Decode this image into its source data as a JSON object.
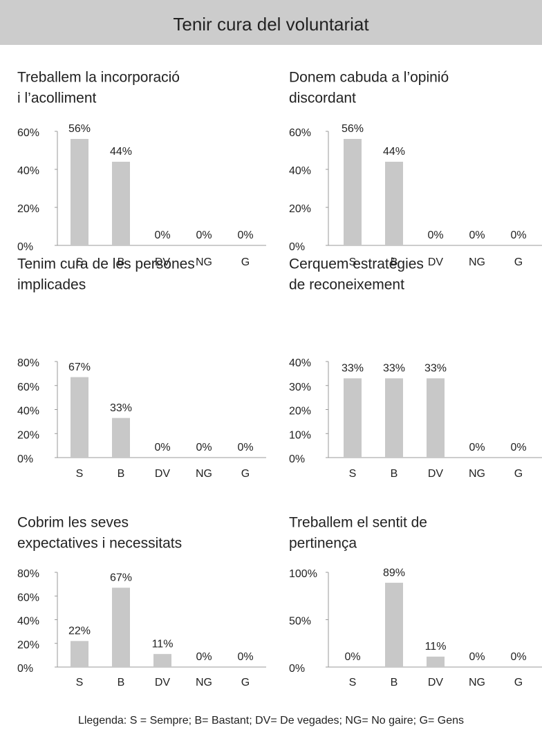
{
  "header": {
    "title": "Tenir cura del voluntariat"
  },
  "legend": "Llegenda: S = Sempre;  B= Bastant; DV= De vegades; NG= No gaire; G= Gens",
  "chart_data": [
    {
      "type": "bar",
      "title": [
        "Treballem la incorporació",
        "i l’acolliment"
      ],
      "categories": [
        "S",
        "B",
        "DV",
        "NG",
        "G"
      ],
      "values": [
        56,
        44,
        0,
        0,
        0
      ],
      "value_labels": [
        "56%",
        "44%",
        "0%",
        "0%",
        "0%"
      ],
      "color": "#c8c8c8",
      "ylim": [
        0,
        60
      ],
      "yticks": [
        {
          "value": 0,
          "label": "0%"
        },
        {
          "value": 20,
          "label": "20%"
        },
        {
          "value": 40,
          "label": "40%"
        },
        {
          "value": 60,
          "label": "60%"
        }
      ]
    },
    {
      "type": "bar",
      "title": [
        "Donem cabuda a l’opinió",
        "discordant"
      ],
      "categories": [
        "S",
        "B",
        "DV",
        "NG",
        "G"
      ],
      "values": [
        56,
        44,
        0,
        0,
        0
      ],
      "value_labels": [
        "56%",
        "44%",
        "0%",
        "0%",
        "0%"
      ],
      "color": "#c8c8c8",
      "ylim": [
        0,
        60
      ],
      "yticks": [
        {
          "value": 0,
          "label": "0%"
        },
        {
          "value": 20,
          "label": "20%"
        },
        {
          "value": 40,
          "label": "40%"
        },
        {
          "value": 60,
          "label": "60%"
        }
      ]
    },
    {
      "type": "bar",
      "title": [
        "Tenim cura de les persones",
        "implicades"
      ],
      "categories": [
        "S",
        "B",
        "DV",
        "NG",
        "G"
      ],
      "values": [
        67,
        33,
        0,
        0,
        0
      ],
      "value_labels": [
        "67%",
        "33%",
        "0%",
        "0%",
        "0%"
      ],
      "color": "#c8c8c8",
      "ylim": [
        0,
        80
      ],
      "yticks": [
        {
          "value": 0,
          "label": "0%"
        },
        {
          "value": 20,
          "label": "20%"
        },
        {
          "value": 40,
          "label": "40%"
        },
        {
          "value": 60,
          "label": "60%"
        },
        {
          "value": 80,
          "label": "80%"
        }
      ]
    },
    {
      "type": "bar",
      "title": [
        "Cerquem estratègies",
        "de reconeixement"
      ],
      "categories": [
        "S",
        "B",
        "DV",
        "NG",
        "G"
      ],
      "values": [
        33,
        33,
        33,
        0,
        0
      ],
      "value_labels": [
        "33%",
        "33%",
        "33%",
        "0%",
        "0%"
      ],
      "color": "#c8c8c8",
      "ylim": [
        0,
        40
      ],
      "yticks": [
        {
          "value": 0,
          "label": "0%"
        },
        {
          "value": 10,
          "label": "10%"
        },
        {
          "value": 20,
          "label": "20%"
        },
        {
          "value": 30,
          "label": "30%"
        },
        {
          "value": 40,
          "label": "40%"
        }
      ]
    },
    {
      "type": "bar",
      "title": [
        "Cobrim les seves",
        "expectatives i necessitats"
      ],
      "categories": [
        "S",
        "B",
        "DV",
        "NG",
        "G"
      ],
      "values": [
        22,
        67,
        11,
        0,
        0
      ],
      "value_labels": [
        "22%",
        "67%",
        "11%",
        "0%",
        "0%"
      ],
      "color": "#c8c8c8",
      "ylim": [
        0,
        80
      ],
      "yticks": [
        {
          "value": 0,
          "label": "0%"
        },
        {
          "value": 20,
          "label": "20%"
        },
        {
          "value": 40,
          "label": "40%"
        },
        {
          "value": 60,
          "label": "60%"
        },
        {
          "value": 80,
          "label": "80%"
        }
      ]
    },
    {
      "type": "bar",
      "title": [
        "Treballem el sentit de",
        "pertinença"
      ],
      "categories": [
        "S",
        "B",
        "DV",
        "NG",
        "G"
      ],
      "values": [
        0,
        89,
        11,
        0,
        0
      ],
      "value_labels": [
        "0%",
        "89%",
        "11%",
        "0%",
        "0%"
      ],
      "color": "#c8c8c8",
      "ylim": [
        0,
        100
      ],
      "yticks": [
        {
          "value": 0,
          "label": "0%"
        },
        {
          "value": 50,
          "label": "50%"
        },
        {
          "value": 100,
          "label": "100%"
        }
      ]
    }
  ]
}
